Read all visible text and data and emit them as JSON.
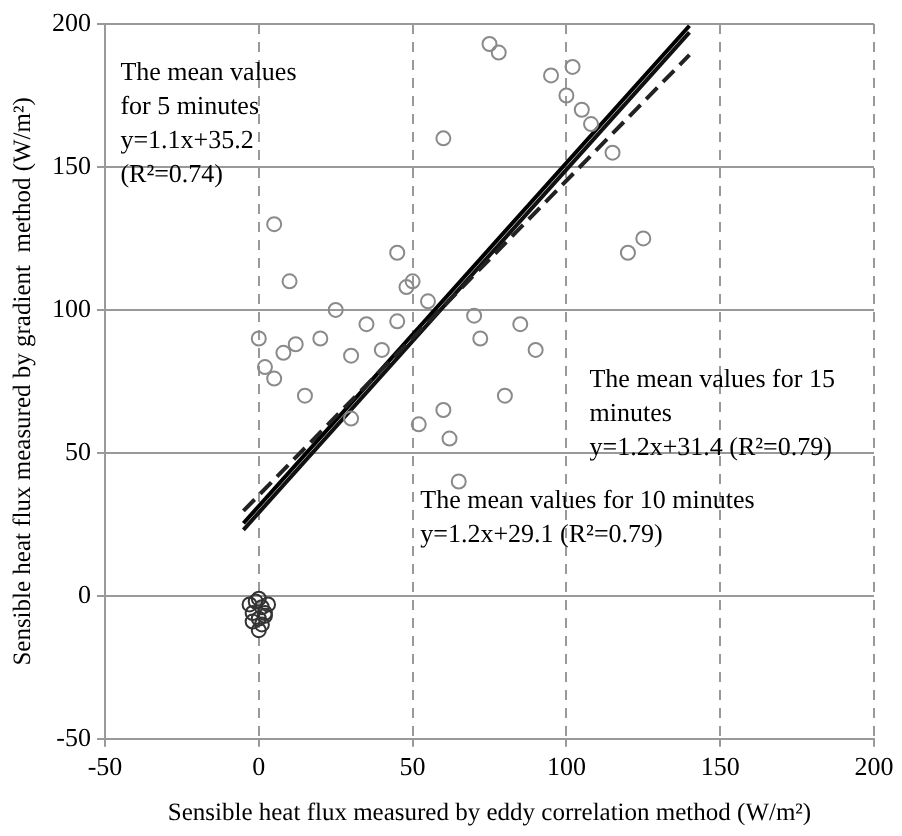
{
  "chart_data": {
    "type": "scatter",
    "xlabel": "Sensible heat flux measured by eddy correlation method (W/m²)",
    "ylabel": "Sensible heat flux measured by gradient  method (W/m²)",
    "xlim": [
      -50,
      200
    ],
    "xticks": [
      -50,
      0,
      50,
      100,
      150,
      200
    ],
    "ylim": [
      -50,
      200
    ],
    "yticks": [
      -50,
      0,
      50,
      100,
      150,
      200
    ],
    "grid": true,
    "legend": false,
    "marker": "circle",
    "series": [
      {
        "color": "#8a8a8a",
        "x": [
          0,
          2,
          5,
          8,
          12,
          15,
          20,
          25,
          30,
          35,
          40,
          45,
          48,
          50,
          52,
          55,
          60,
          62,
          65,
          70,
          72,
          75,
          78,
          80,
          85,
          90,
          95,
          100,
          102,
          105,
          108,
          115,
          120,
          125,
          5,
          10,
          30,
          45,
          60
        ],
        "values": [
          90,
          80,
          76,
          85,
          88,
          70,
          90,
          100,
          84,
          95,
          86,
          96,
          108,
          110,
          60,
          103,
          160,
          55,
          40,
          98,
          90,
          193,
          190,
          70,
          95,
          86,
          182,
          175,
          185,
          170,
          165,
          155,
          120,
          125,
          130,
          110,
          62,
          120,
          65
        ]
      },
      {
        "color": "#333333",
        "x": [
          -3,
          -2,
          -1,
          0,
          1,
          2,
          3,
          -2,
          0,
          1,
          2,
          0
        ],
        "values": [
          -3,
          -6,
          -2,
          -8,
          -4,
          -7,
          -3,
          -9,
          -1,
          -10,
          -6,
          -12
        ]
      },
      {
        "type": "line",
        "marker": "none",
        "color": "#222222",
        "line_style": "dashed",
        "x": [
          -5,
          140
        ],
        "values": [
          29.7,
          189.2
        ]
      },
      {
        "type": "line",
        "marker": "none",
        "color": "#111111",
        "line_style": "solid",
        "x": [
          -5,
          140
        ],
        "values": [
          23.1,
          197.1
        ]
      },
      {
        "type": "line",
        "marker": "none",
        "color": "#000000",
        "line_style": "solid",
        "x": [
          -5,
          140
        ],
        "values": [
          25.4,
          199.4
        ]
      }
    ],
    "annotations": [
      "The mean values\nfor 5 minutes\ny=1.1x+35.2\n(R²=0.74)",
      "The mean values for 15\nminutes\ny=1.2x+31.4 (R²=0.79)",
      "The mean values for 10 minutes\ny=1.2x+29.1 (R²=0.79)"
    ]
  }
}
